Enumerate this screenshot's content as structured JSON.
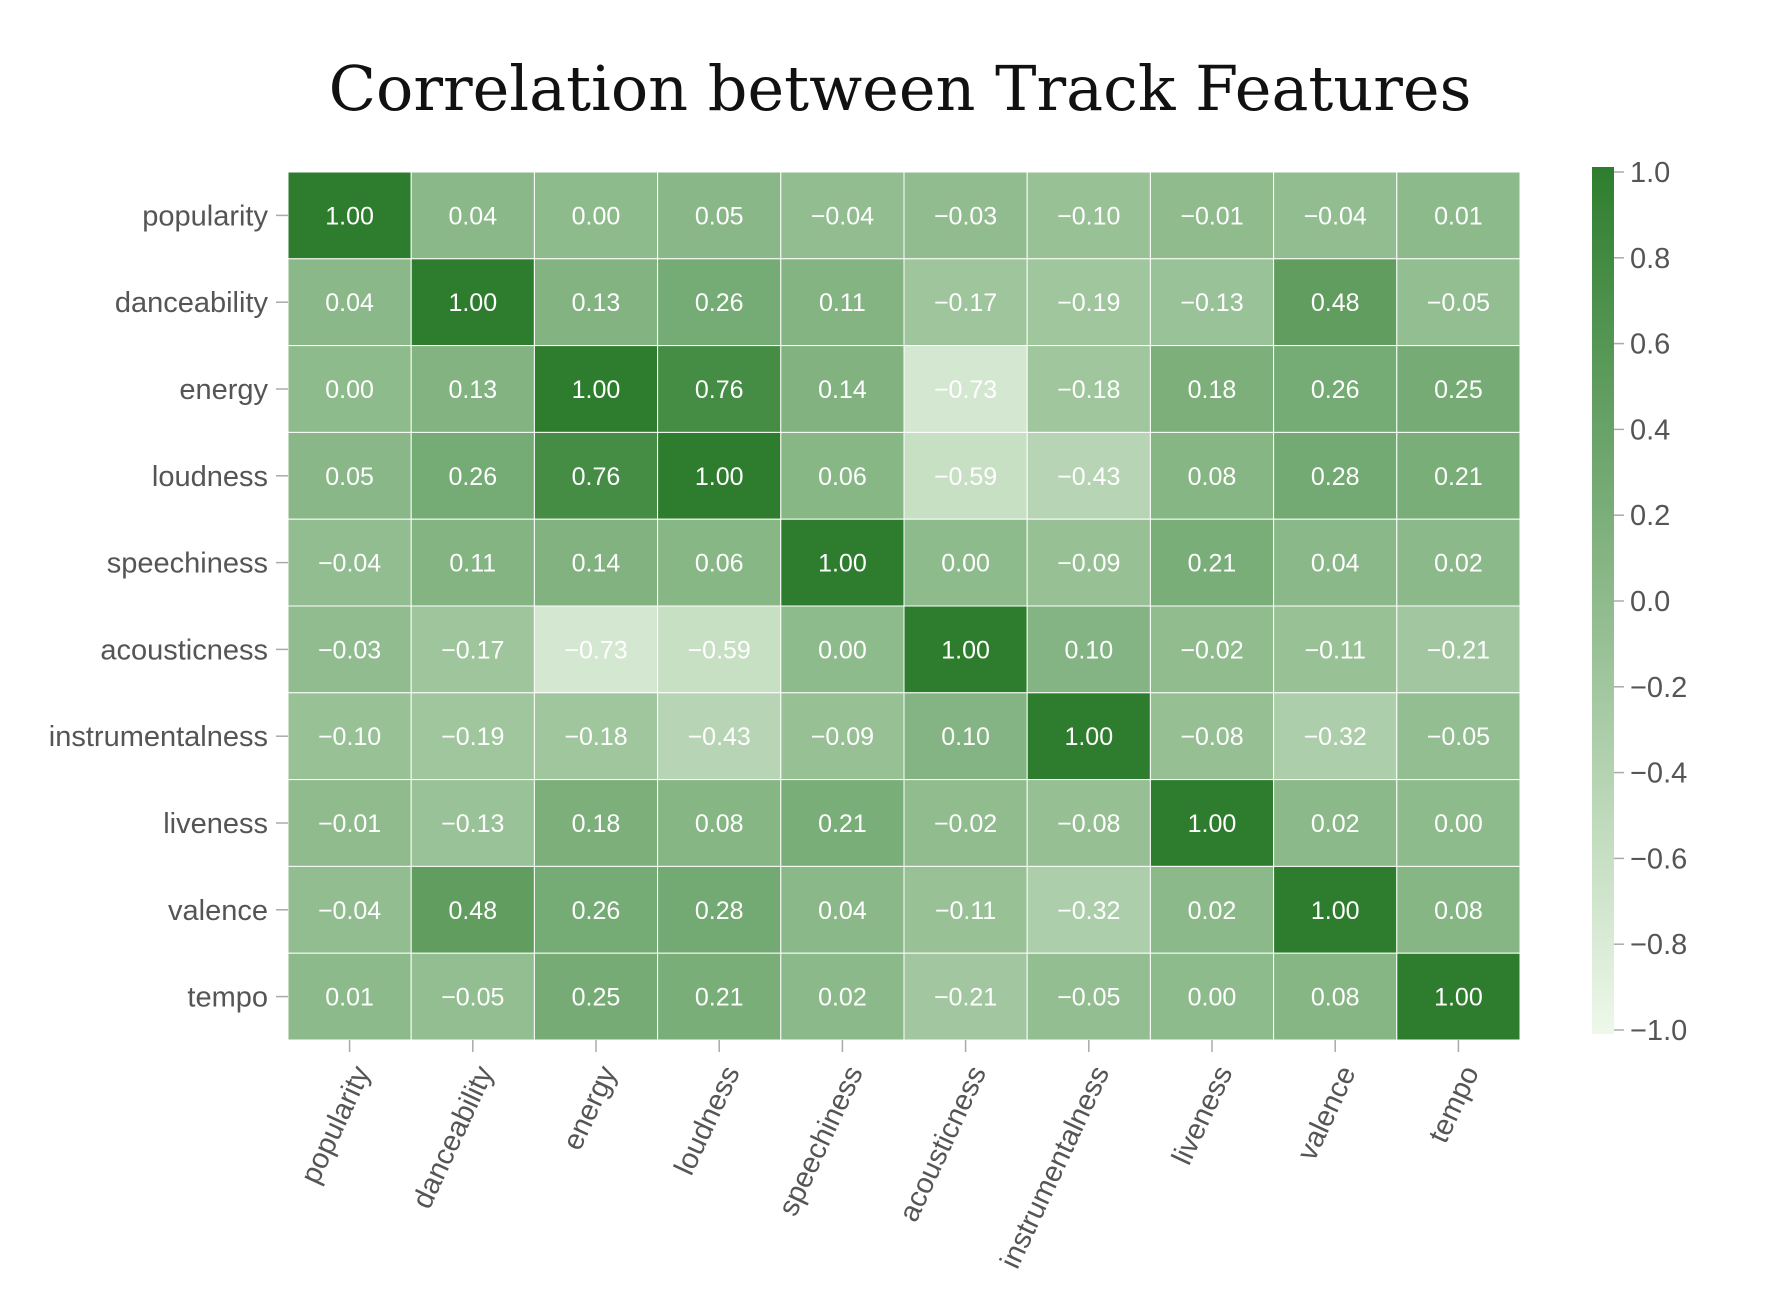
{
  "chart_data": {
    "type": "heatmap",
    "title": "Correlation between Track Features",
    "x_categories": [
      "popularity",
      "danceability",
      "energy",
      "loudness",
      "speechiness",
      "acousticness",
      "instrumentalness",
      "liveness",
      "valence",
      "tempo"
    ],
    "y_categories": [
      "popularity",
      "danceability",
      "energy",
      "loudness",
      "speechiness",
      "acousticness",
      "instrumentalness",
      "liveness",
      "valence",
      "tempo"
    ],
    "values": [
      [
        1.0,
        0.04,
        0.0,
        0.05,
        -0.04,
        -0.03,
        -0.1,
        -0.01,
        -0.04,
        0.01
      ],
      [
        0.04,
        1.0,
        0.13,
        0.26,
        0.11,
        -0.17,
        -0.19,
        -0.13,
        0.48,
        -0.05
      ],
      [
        0.0,
        0.13,
        1.0,
        0.76,
        0.14,
        -0.73,
        -0.18,
        0.18,
        0.26,
        0.25
      ],
      [
        0.05,
        0.26,
        0.76,
        1.0,
        0.06,
        -0.59,
        -0.43,
        0.08,
        0.28,
        0.21
      ],
      [
        -0.04,
        0.11,
        0.14,
        0.06,
        1.0,
        0.0,
        -0.09,
        0.21,
        0.04,
        0.02
      ],
      [
        -0.03,
        -0.17,
        -0.73,
        -0.59,
        0.0,
        1.0,
        0.1,
        -0.02,
        -0.11,
        -0.21
      ],
      [
        -0.1,
        -0.19,
        -0.18,
        -0.43,
        -0.09,
        0.1,
        1.0,
        -0.08,
        -0.32,
        -0.05
      ],
      [
        -0.01,
        -0.13,
        0.18,
        0.08,
        0.21,
        -0.02,
        -0.08,
        1.0,
        0.02,
        0.0
      ],
      [
        -0.04,
        0.48,
        0.26,
        0.28,
        0.04,
        -0.11,
        -0.32,
        0.02,
        1.0,
        0.08
      ],
      [
        0.01,
        -0.05,
        0.25,
        0.21,
        0.02,
        -0.21,
        -0.05,
        0.0,
        0.08,
        1.0
      ]
    ],
    "colorscale": {
      "range": [
        -1,
        1
      ],
      "low_color": "#eef8ea",
      "high_color": "#2e7d2e",
      "ticks": [
        "1.0",
        "0.8",
        "0.6",
        "0.4",
        "0.2",
        "0.0",
        "−0.2",
        "−0.4",
        "−0.6",
        "−0.8",
        "−1.0"
      ]
    },
    "cell_text_color": "#ffffff",
    "cell_border_color": "#ffffff",
    "grid": false,
    "legend": "right colorbar"
  }
}
